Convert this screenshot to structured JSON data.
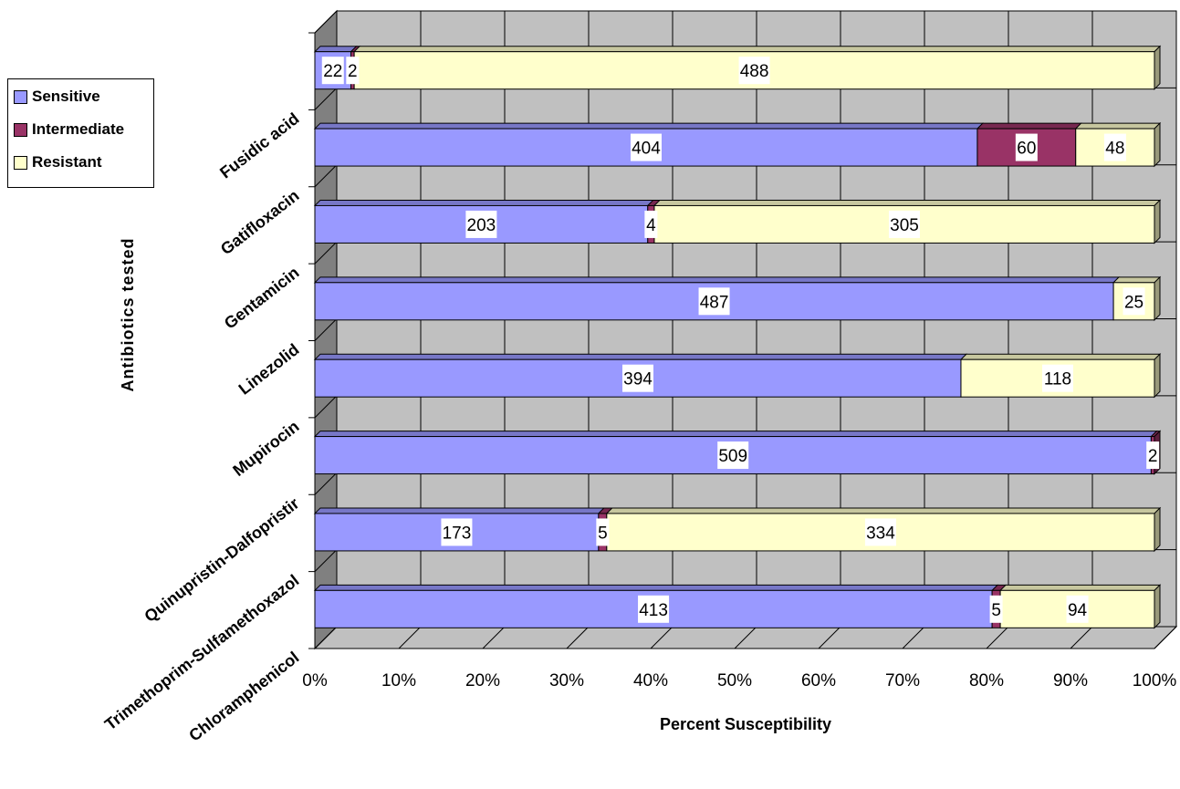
{
  "chart_data": {
    "type": "bar",
    "orientation": "horizontal",
    "stacked": "100%",
    "three_d": true,
    "title": "",
    "xlabel": "Percent Susceptibility",
    "ylabel": "Antibiotics tested",
    "xlim": [
      0,
      100
    ],
    "x_tick_labels": [
      "0%",
      "10%",
      "20%",
      "30%",
      "40%",
      "50%",
      "60%",
      "70%",
      "80%",
      "90%",
      "100%"
    ],
    "grid": true,
    "legend_position": "left",
    "categories": [
      "Chloramphenicol",
      "Trimethoprim-Sulfamethoxazole",
      "Quinupristin-Dalfopristin",
      "Mupirocin",
      "Linezolid",
      "Gentamicin",
      "Gatifloxacin",
      "Fusidic acid"
    ],
    "category_labels": [
      "Chloramphenicol",
      "Trimethoprim-Sulfamethoxazol",
      "Quinupristin-Dalfopristir",
      "Mupirocin",
      "Linezolid",
      "Gentamicin",
      "Gatifloxacin",
      "Fusidic acid"
    ],
    "series": [
      {
        "name": "Sensitive",
        "color": "#9999ff",
        "values": [
          413,
          173,
          509,
          394,
          487,
          203,
          404,
          22
        ]
      },
      {
        "name": "Intermediate",
        "color": "#993366",
        "values": [
          5,
          5,
          2,
          0,
          0,
          4,
          60,
          2
        ]
      },
      {
        "name": "Resistant",
        "color": "#ffffcc",
        "values": [
          94,
          334,
          0,
          118,
          25,
          305,
          48,
          488
        ]
      }
    ],
    "colors": {
      "wall": "#c0c0c0",
      "floor": "#808080",
      "grid": "#000000"
    }
  },
  "legend": {
    "items": [
      {
        "label": "Sensitive",
        "color": "#9999ff"
      },
      {
        "label": "Intermediate",
        "color": "#993366"
      },
      {
        "label": "Resistant",
        "color": "#ffffcc"
      }
    ]
  }
}
